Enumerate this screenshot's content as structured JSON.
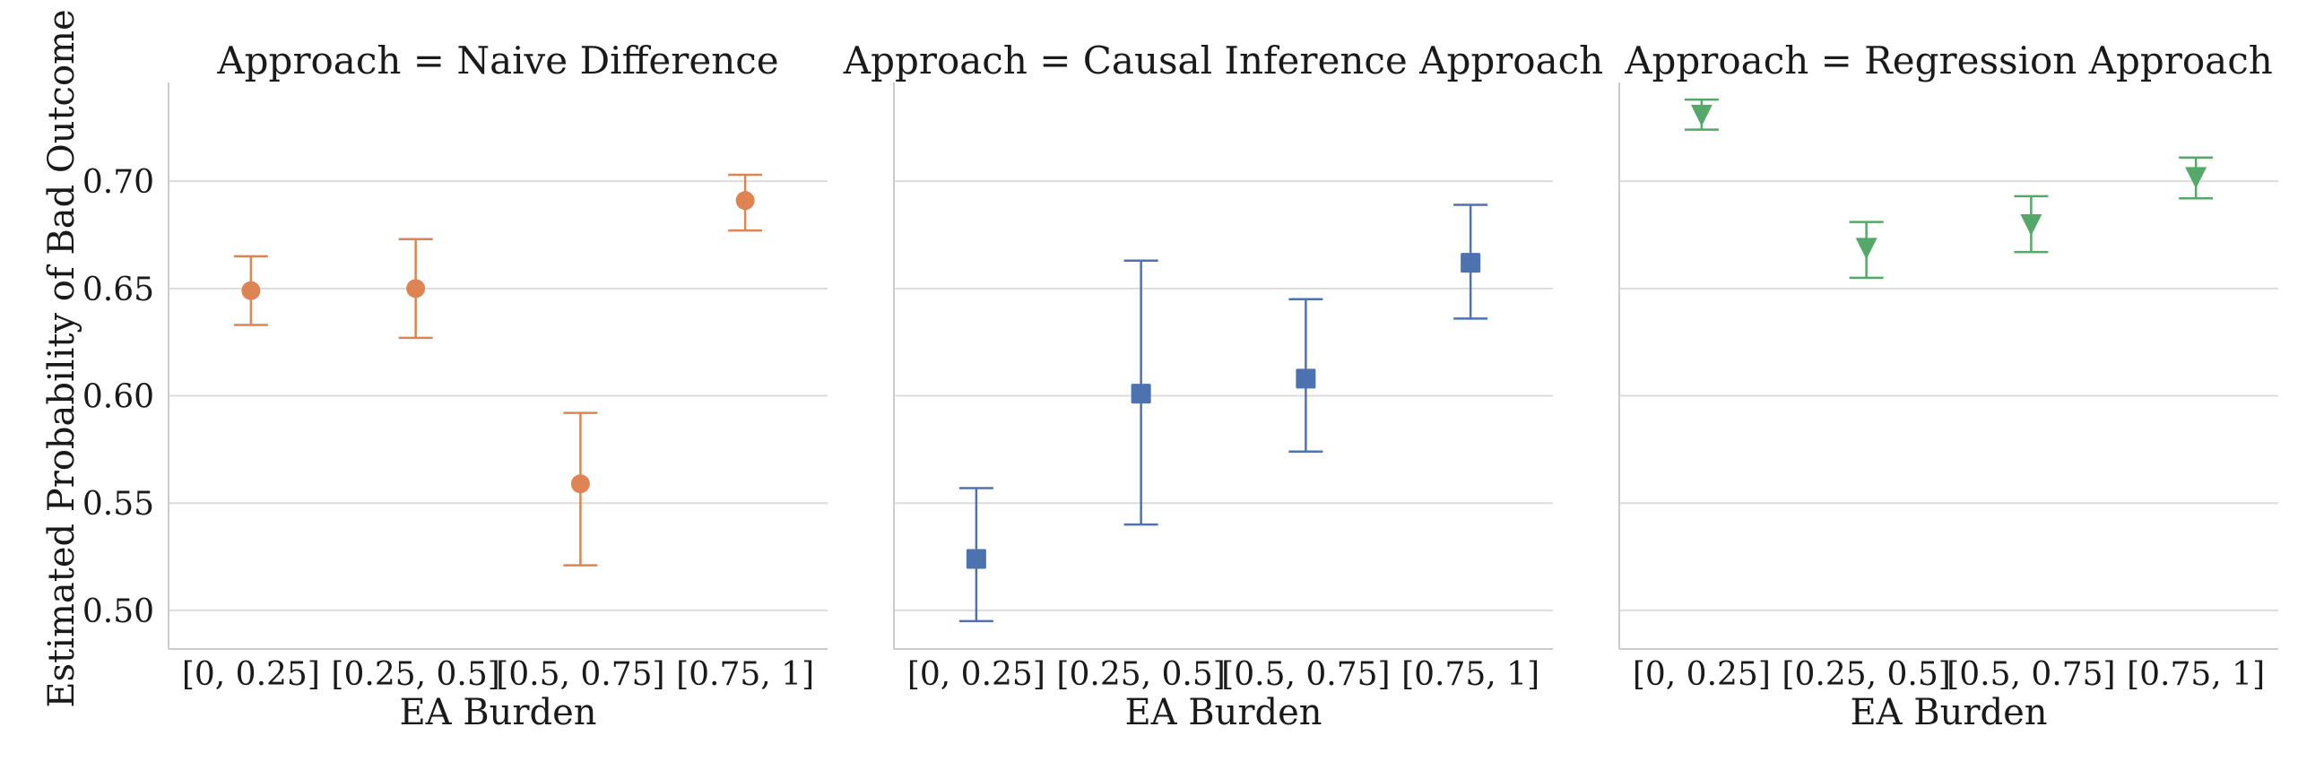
{
  "ylabel": "Estimated Probability of Bad Outcome",
  "y_ticks": [
    "0.50",
    "0.55",
    "0.60",
    "0.65",
    "0.70"
  ],
  "chart_data": [
    {
      "type": "scatter",
      "title": "Approach = Naive Difference",
      "xlabel": "EA Burden",
      "categories": [
        "[0, 0.25]",
        "[0.25, 0.5]",
        "[0.5, 0.75]",
        "[0.75, 1]"
      ],
      "values": [
        0.649,
        0.65,
        0.559,
        0.691
      ],
      "err_low": [
        0.633,
        0.627,
        0.521,
        0.677
      ],
      "err_high": [
        0.665,
        0.673,
        0.592,
        0.703
      ],
      "marker": "circle",
      "color": "#dd8452",
      "ylim": [
        0.482,
        0.746
      ],
      "grid": true
    },
    {
      "type": "scatter",
      "title": "Approach = Causal Inference Approach",
      "xlabel": "EA Burden",
      "categories": [
        "[0, 0.25]",
        "[0.25, 0.5]",
        "[0.5, 0.75]",
        "[0.75, 1]"
      ],
      "values": [
        0.524,
        0.601,
        0.608,
        0.662
      ],
      "err_low": [
        0.495,
        0.54,
        0.574,
        0.636
      ],
      "err_high": [
        0.557,
        0.663,
        0.645,
        0.689
      ],
      "marker": "square",
      "color": "#4c72b0",
      "ylim": [
        0.482,
        0.746
      ],
      "grid": true
    },
    {
      "type": "scatter",
      "title": "Approach = Regression Approach",
      "xlabel": "EA Burden",
      "categories": [
        "[0, 0.25]",
        "[0.25, 0.5]",
        "[0.5, 0.75]",
        "[0.75, 1]"
      ],
      "values": [
        0.731,
        0.669,
        0.68,
        0.702
      ],
      "err_low": [
        0.724,
        0.655,
        0.667,
        0.692
      ],
      "err_high": [
        0.738,
        0.681,
        0.693,
        0.711
      ],
      "marker": "triangle-down",
      "color": "#55a868",
      "ylim": [
        0.482,
        0.746
      ],
      "grid": true
    }
  ]
}
